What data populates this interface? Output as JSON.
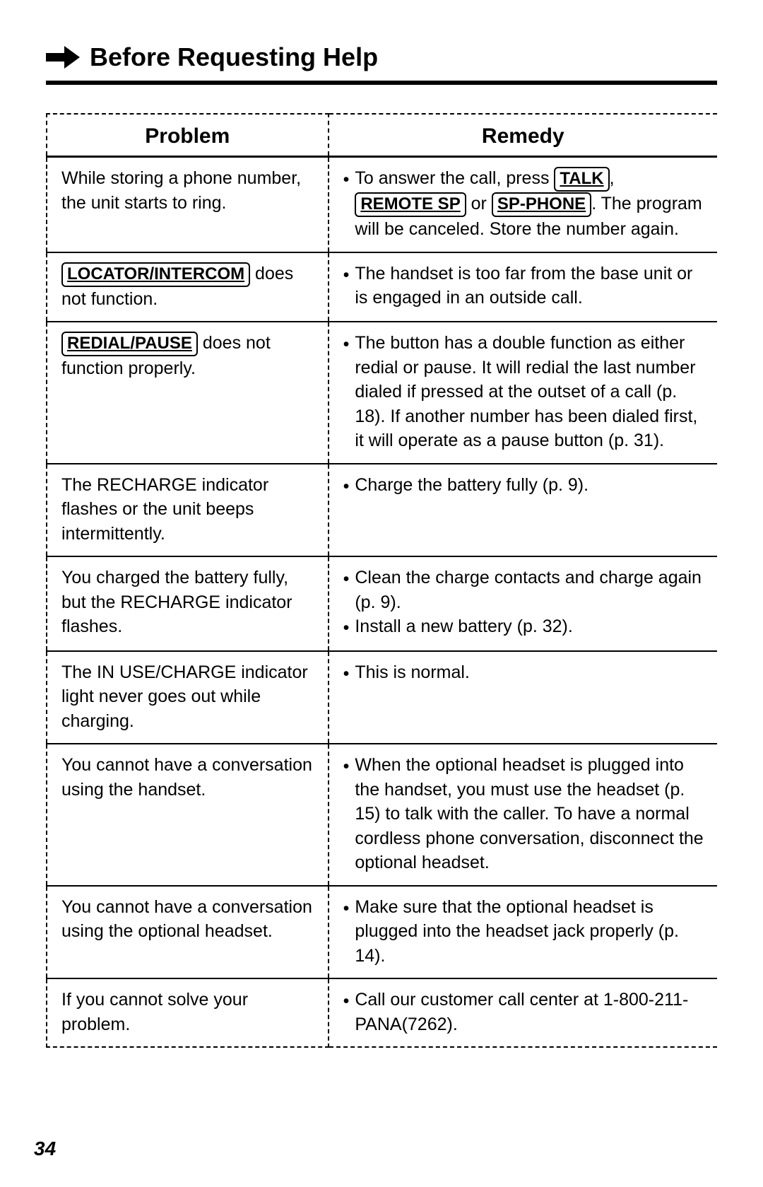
{
  "title": "Before Requesting Help",
  "columns": {
    "problem": "Problem",
    "remedy": "Remedy"
  },
  "rows": [
    {
      "problem": [
        {
          "t": "text",
          "v": "While storing a phone number, the unit starts to ring."
        }
      ],
      "remedies": [
        [
          {
            "t": "text",
            "v": "To answer the call, press "
          },
          {
            "t": "btn",
            "v": "TALK"
          },
          {
            "t": "text",
            "v": ", "
          },
          {
            "t": "btn",
            "v": "REMOTE SP"
          },
          {
            "t": "text",
            "v": " or "
          },
          {
            "t": "btn",
            "v": "SP-PHONE"
          },
          {
            "t": "text",
            "v": ". The program will be canceled. Store the number again."
          }
        ]
      ]
    },
    {
      "problem": [
        {
          "t": "btn",
          "v": "LOCATOR/INTERCOM"
        },
        {
          "t": "text",
          "v": " does not function."
        }
      ],
      "remedies": [
        [
          {
            "t": "text",
            "v": "The handset is too far from the base unit or is engaged in an outside call."
          }
        ]
      ]
    },
    {
      "problem": [
        {
          "t": "btn",
          "v": "REDIAL/PAUSE"
        },
        {
          "t": "text",
          "v": " does not function properly."
        }
      ],
      "remedies": [
        [
          {
            "t": "text",
            "v": "The button has a double function as either redial or pause. It will redial the last number dialed if pressed at the outset of a call (p. 18). If another number has been dialed first, it will operate as a pause button (p. 31)."
          }
        ]
      ]
    },
    {
      "problem": [
        {
          "t": "text",
          "v": "The RECHARGE indicator flashes or the unit beeps intermittently."
        }
      ],
      "remedies": [
        [
          {
            "t": "text",
            "v": "Charge the battery fully (p. 9)."
          }
        ]
      ]
    },
    {
      "problem": [
        {
          "t": "text",
          "v": "You charged the battery fully, but the RECHARGE indicator flashes."
        }
      ],
      "remedies": [
        [
          {
            "t": "text",
            "v": "Clean the charge contacts and charge again (p. 9)."
          }
        ],
        [
          {
            "t": "text",
            "v": "Install a new battery (p. 32)."
          }
        ]
      ]
    },
    {
      "problem": [
        {
          "t": "text",
          "v": "The IN USE/CHARGE indicator light never goes out while charging."
        }
      ],
      "remedies": [
        [
          {
            "t": "text",
            "v": "This is normal."
          }
        ]
      ]
    },
    {
      "problem": [
        {
          "t": "text",
          "v": "You cannot have a conversation using the handset."
        }
      ],
      "remedies": [
        [
          {
            "t": "text",
            "v": "When the optional headset is plugged into the handset, you must use the headset (p. 15) to talk with the caller. To have a normal cordless phone conversation, disconnect the optional headset."
          }
        ]
      ]
    },
    {
      "problem": [
        {
          "t": "text",
          "v": "You cannot have a conversation using the optional headset."
        }
      ],
      "remedies": [
        [
          {
            "t": "text",
            "v": "Make sure that the optional headset is plugged into the headset jack properly (p. 14)."
          }
        ]
      ]
    },
    {
      "problem": [
        {
          "t": "text",
          "v": "If you cannot solve your problem."
        }
      ],
      "remedies": [
        [
          {
            "t": "text",
            "v": "Call our customer call center at 1-800-211-PANA(7262)."
          }
        ]
      ]
    }
  ],
  "page_number": "34"
}
